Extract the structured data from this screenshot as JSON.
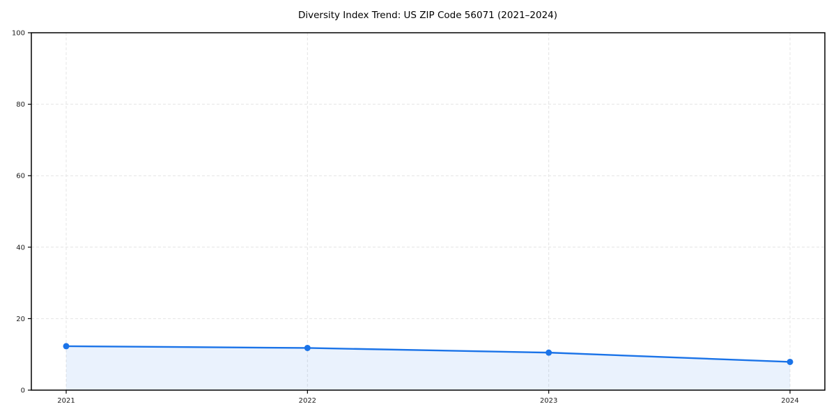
{
  "chart_data": {
    "type": "line",
    "title": "Diversity Index Trend: US ZIP Code 56071 (2021–2024)",
    "categories": [
      "2021",
      "2022",
      "2023",
      "2024"
    ],
    "x": [
      2021,
      2022,
      2023,
      2024
    ],
    "values": [
      12.3,
      11.8,
      10.5,
      7.9
    ],
    "series_name": "Diversity Index",
    "xlabel": "",
    "ylabel": "",
    "ylim": [
      0,
      100
    ],
    "yticks": [
      0,
      20,
      40,
      60,
      80,
      100
    ],
    "xticks": [
      "2021",
      "2022",
      "2023",
      "2024"
    ],
    "grid": true,
    "grid_style": "dashed",
    "legend_position": "none",
    "marker": "circle",
    "area_fill": true,
    "colors": {
      "line": "#1a73e8",
      "fill": "rgba(26,115,232,0.09)",
      "gridline": "#e4e4e4",
      "axis": "#000000",
      "tick_label": "#1a1a1a",
      "background": "#ffffff"
    }
  }
}
